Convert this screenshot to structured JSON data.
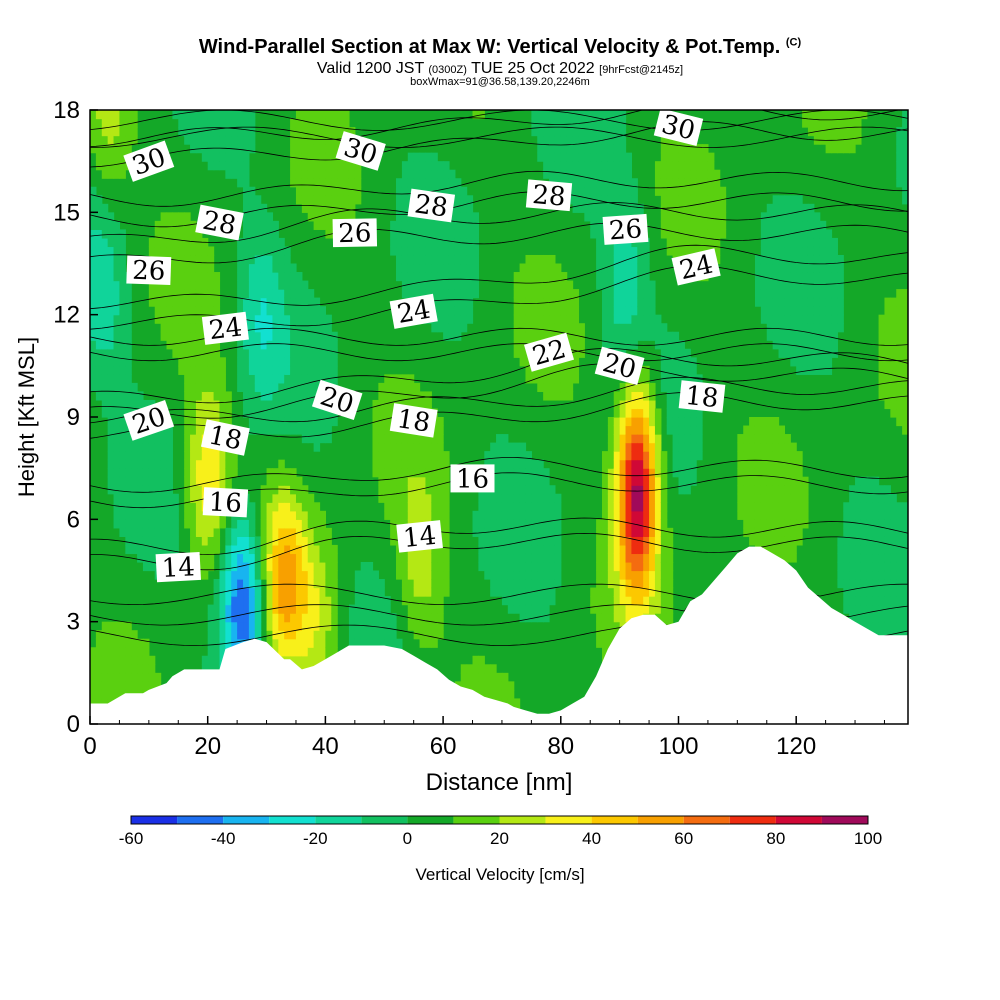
{
  "title": {
    "main": "Wind-Parallel Section at Max W: Vertical Velocity & Pot.Temp.",
    "copyright": "(C)",
    "valid_prefix": "Valid 1200 JST",
    "valid_utc": "(0300Z)",
    "valid_date": "TUE 25 Oct 2022",
    "forecast": "[9hrFcst@2145z]",
    "boxwmax": "boxWmax=91@36.58,139.20,2246m"
  },
  "chart_data": {
    "type": "heatmap",
    "xlabel": "Distance [nm]",
    "ylabel": "Height [Kft MSL]",
    "xlim": [
      0,
      139
    ],
    "ylim": [
      0,
      18
    ],
    "xticks": [
      0,
      20,
      40,
      60,
      80,
      100,
      120
    ],
    "yticks": [
      0,
      3,
      6,
      9,
      12,
      15,
      18
    ],
    "colorbar": {
      "label": "Vertical Velocity [cm/s]",
      "ticks": [
        -60,
        -40,
        -20,
        0,
        20,
        40,
        60,
        80,
        100
      ],
      "levels": [
        -60,
        -50,
        -40,
        -30,
        -20,
        -10,
        0,
        10,
        20,
        30,
        40,
        50,
        60,
        70,
        80,
        90,
        100
      ],
      "colors": [
        "#1a2fe6",
        "#1e6ff0",
        "#18b4f0",
        "#12e0d0",
        "#10d49a",
        "#12c060",
        "#14a828",
        "#5ad010",
        "#b4e814",
        "#f8f01a",
        "#fcc800",
        "#f8a000",
        "#f46c10",
        "#ee2c10",
        "#d00836",
        "#a00a5a",
        "#5a0a8a"
      ]
    },
    "terrain": {
      "x": [
        0,
        3,
        6,
        9,
        10,
        13,
        14,
        16,
        17,
        20,
        22,
        23,
        26,
        28,
        30,
        33,
        34,
        36,
        38,
        40,
        42,
        44,
        46,
        50,
        53,
        55,
        57,
        59,
        61,
        63,
        65,
        67,
        69,
        71,
        72,
        74,
        76,
        78,
        80,
        82,
        84,
        86,
        88,
        90,
        92,
        94,
        96,
        98,
        100,
        102,
        104,
        106,
        108,
        110,
        112,
        114,
        116,
        118,
        120,
        122,
        124,
        126,
        128,
        130,
        132,
        134,
        136,
        139
      ],
      "height_kft": [
        0.6,
        0.6,
        0.9,
        0.9,
        1.0,
        1.2,
        1.4,
        1.6,
        1.6,
        1.6,
        1.6,
        2.2,
        2.4,
        2.5,
        2.4,
        1.9,
        1.9,
        1.6,
        1.7,
        1.9,
        2.1,
        2.3,
        2.3,
        2.3,
        2.2,
        2.0,
        1.8,
        1.6,
        1.3,
        1.1,
        1.0,
        0.8,
        0.7,
        0.6,
        0.5,
        0.4,
        0.3,
        0.3,
        0.4,
        0.6,
        0.8,
        1.4,
        2.2,
        2.8,
        3.1,
        3.2,
        3.2,
        2.9,
        3.0,
        3.6,
        3.8,
        4.2,
        4.6,
        5.0,
        5.2,
        5.2,
        5.0,
        4.8,
        4.5,
        4.0,
        3.7,
        3.4,
        3.2,
        3.0,
        2.8,
        2.6,
        2.6,
        2.6
      ]
    },
    "vertical_velocity_features": [
      {
        "x": 20,
        "y_kft": 7.2,
        "w_cm_s": 35
      },
      {
        "x": 26,
        "y_kft": 3.6,
        "w_cm_s": -60
      },
      {
        "x": 33,
        "y_kft": 4.2,
        "w_cm_s": 45
      },
      {
        "x": 39,
        "y_kft": 3.0,
        "w_cm_s": 20
      },
      {
        "x": 56,
        "y_kft": 4.5,
        "w_cm_s": 20
      },
      {
        "x": 93,
        "y_kft": 6.9,
        "w_cm_s": 91
      },
      {
        "x": 91,
        "y_kft": 13.0,
        "w_cm_s": -20
      },
      {
        "x": 29,
        "y_kft": 12.0,
        "w_cm_s": -20
      },
      {
        "x": 2,
        "y_kft": 12.5,
        "w_cm_s": -20
      },
      {
        "x": 3,
        "y_kft": 17.5,
        "w_cm_s": 20
      }
    ],
    "isentrope_labels": [
      {
        "text": "30",
        "x": 10,
        "y_kft": 16.5
      },
      {
        "text": "30",
        "x": 46,
        "y_kft": 16.8
      },
      {
        "text": "30",
        "x": 100,
        "y_kft": 17.5
      },
      {
        "text": "28",
        "x": 22,
        "y_kft": 14.7
      },
      {
        "text": "28",
        "x": 58,
        "y_kft": 15.2
      },
      {
        "text": "28",
        "x": 78,
        "y_kft": 15.5
      },
      {
        "text": "26",
        "x": 10,
        "y_kft": 13.3
      },
      {
        "text": "26",
        "x": 45,
        "y_kft": 14.4
      },
      {
        "text": "26",
        "x": 91,
        "y_kft": 14.5
      },
      {
        "text": "24",
        "x": 23,
        "y_kft": 11.6
      },
      {
        "text": "24",
        "x": 55,
        "y_kft": 12.1
      },
      {
        "text": "24",
        "x": 103,
        "y_kft": 13.4
      },
      {
        "text": "22",
        "x": 78,
        "y_kft": 10.9
      },
      {
        "text": "20",
        "x": 10,
        "y_kft": 8.9
      },
      {
        "text": "20",
        "x": 42,
        "y_kft": 9.5
      },
      {
        "text": "20",
        "x": 90,
        "y_kft": 10.5
      },
      {
        "text": "18",
        "x": 23,
        "y_kft": 8.4
      },
      {
        "text": "18",
        "x": 55,
        "y_kft": 8.9
      },
      {
        "text": "18",
        "x": 104,
        "y_kft": 9.6
      },
      {
        "text": "16",
        "x": 23,
        "y_kft": 6.5
      },
      {
        "text": "16",
        "x": 65,
        "y_kft": 7.2
      },
      {
        "text": "14",
        "x": 15,
        "y_kft": 4.6
      },
      {
        "text": "14",
        "x": 56,
        "y_kft": 5.5
      }
    ]
  }
}
